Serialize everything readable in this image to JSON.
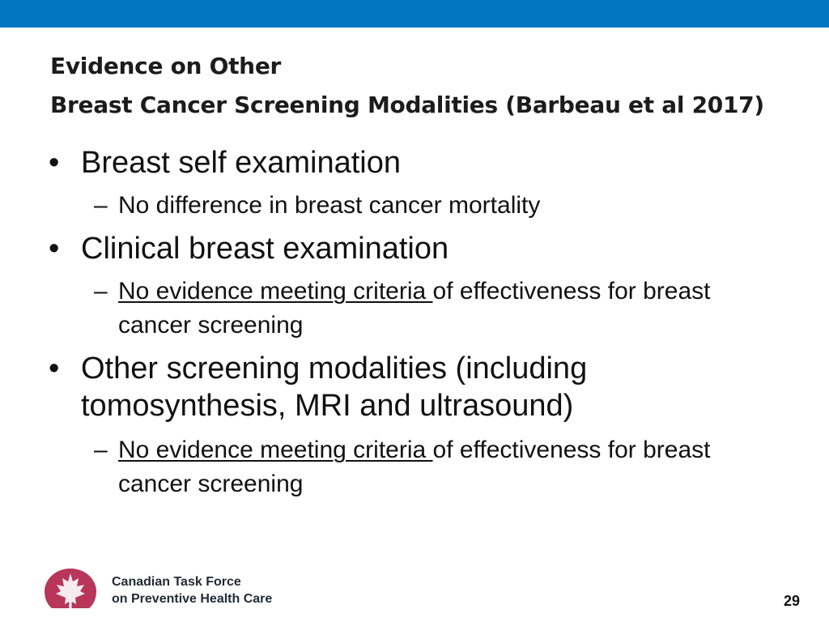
{
  "slide": {
    "title_line1": "Evidence on Other",
    "title_line2": "Breast Cancer Screening Modalities (Barbeau et al 2017)",
    "page_number": "29"
  },
  "bullets": [
    {
      "text": "Breast self examination",
      "sub": {
        "underlined": "",
        "text": "No difference in breast cancer mortality"
      }
    },
    {
      "text": "Clinical breast examination",
      "sub": {
        "underlined": "No evidence meeting criteria ",
        "text": "of effectiveness for breast cancer screening"
      }
    },
    {
      "text": "Other screening modalities (including tomosynthesis, MRI and ultrasound)",
      "sub": {
        "underlined": "No evidence meeting criteria ",
        "text": "of effectiveness for breast cancer screening"
      }
    }
  ],
  "footer": {
    "org_line1": "Canadian Task Force",
    "org_line2": "on Preventive Health Care",
    "logo_icon": "maple-leaf-logo-icon"
  },
  "colors": {
    "top_bar": "#0077c0",
    "logo": "#b7365a"
  }
}
